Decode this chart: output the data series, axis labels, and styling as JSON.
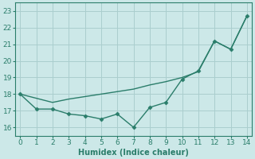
{
  "line1_x": [
    0,
    1,
    2,
    3,
    4,
    5,
    6,
    7,
    8,
    9,
    10,
    11,
    12,
    13,
    14
  ],
  "line1_y": [
    18.0,
    17.1,
    17.1,
    16.8,
    16.7,
    16.5,
    16.8,
    16.0,
    17.2,
    17.5,
    18.9,
    19.4,
    21.2,
    20.7,
    22.7
  ],
  "line2_x": [
    0,
    2,
    3,
    4,
    5,
    6,
    7,
    8,
    9,
    10,
    11,
    12,
    13,
    14
  ],
  "line2_y": [
    18.0,
    17.5,
    17.7,
    17.85,
    18.0,
    18.15,
    18.3,
    18.55,
    18.75,
    19.0,
    19.35,
    21.2,
    20.7,
    22.7
  ],
  "color": "#2a7d6a",
  "bg_color": "#cce8e8",
  "grid_color": "#aacece",
  "xlabel": "Humidex (Indice chaleur)",
  "ylim": [
    15.5,
    23.5
  ],
  "xlim": [
    -0.3,
    14.3
  ],
  "yticks": [
    16,
    17,
    18,
    19,
    20,
    21,
    22,
    23
  ],
  "xticks": [
    0,
    1,
    2,
    3,
    4,
    5,
    6,
    7,
    8,
    9,
    10,
    11,
    12,
    13,
    14
  ],
  "marker_size": 2.5,
  "linewidth": 1.0
}
